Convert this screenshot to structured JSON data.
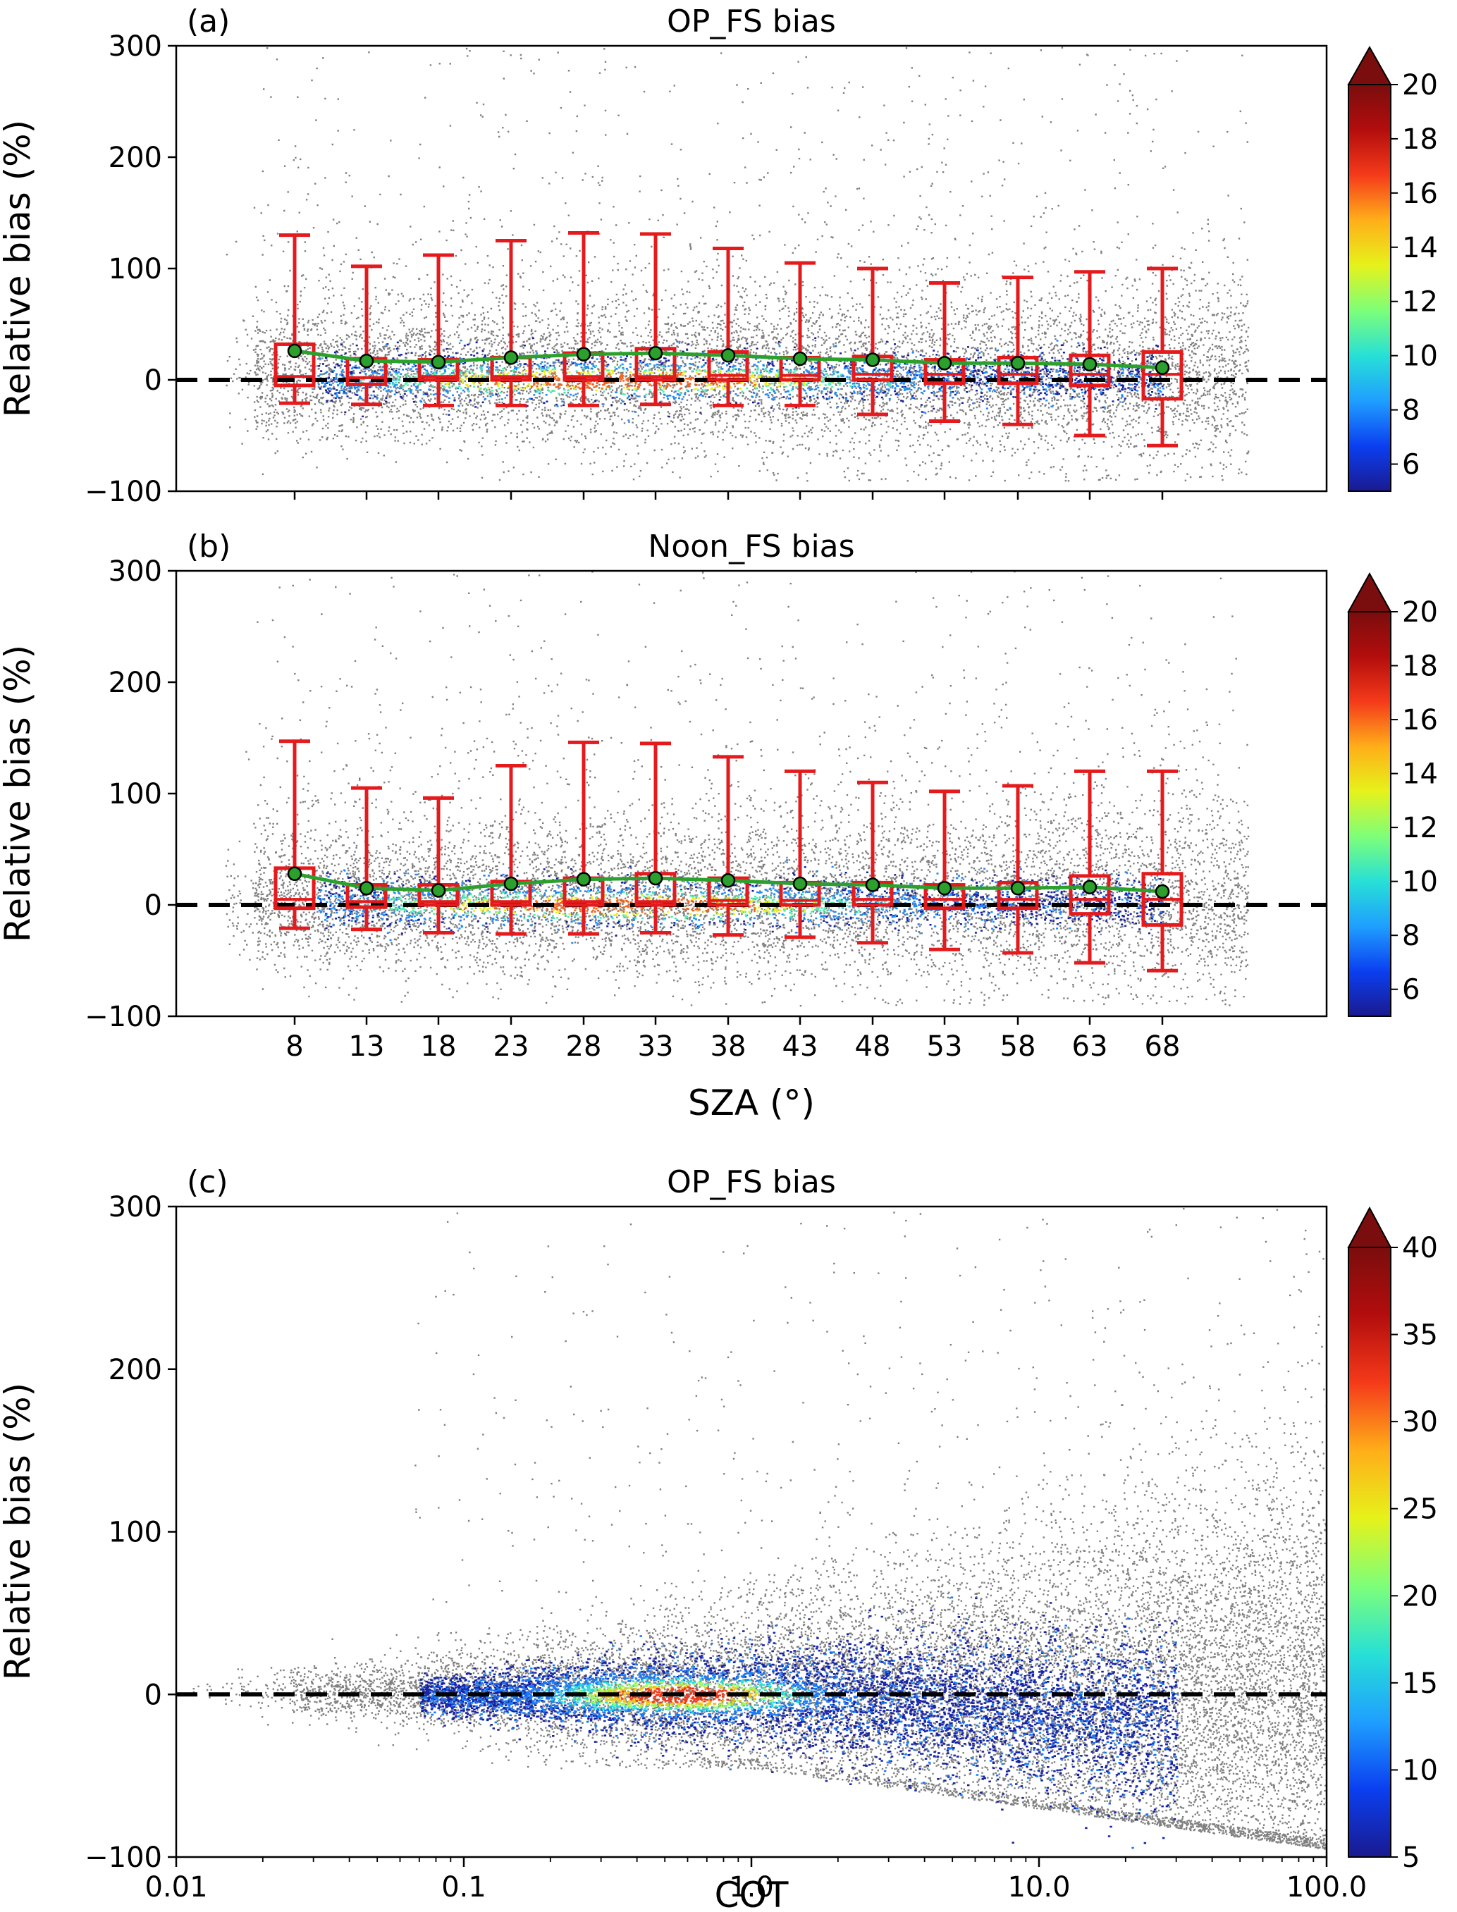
{
  "colors": {
    "scatter": "#808080",
    "box": "#e41a1c",
    "mean_line": "#2ca02c",
    "mean_marker": "#2ca02c",
    "zero_line": "#000000",
    "colormap": [
      "#1a1a8f",
      "#0b3ff0",
      "#1f9fff",
      "#27e0d6",
      "#7dff7a",
      "#e6f21a",
      "#ffae19",
      "#f53a1a",
      "#b30d0d",
      "#7a0d0d"
    ]
  },
  "chart_data": [
    {
      "type": "scatter",
      "panel": "(a)",
      "title": "OP_FS bias",
      "xlabel": "",
      "ylabel": "Relative bias (%)",
      "ylim": [
        -100,
        300
      ],
      "yticks": [
        "300",
        "200",
        "100",
        "0",
        "−100"
      ],
      "x_categories": [
        "8",
        "13",
        "18",
        "23",
        "28",
        "33",
        "38",
        "43",
        "48",
        "53",
        "58",
        "63",
        "68"
      ],
      "boxplot": {
        "whisker_low": [
          -21,
          -22,
          -23,
          -23,
          -23,
          -22,
          -23,
          -23,
          -31,
          -37,
          -40,
          -50,
          -59
        ],
        "q1": [
          -5,
          -4,
          0,
          0,
          0,
          0,
          0,
          0,
          0,
          -3,
          -3,
          -5,
          -17
        ],
        "median": [
          3,
          2,
          3,
          3,
          3,
          3,
          4,
          4,
          5,
          5,
          5,
          5,
          5
        ],
        "q3": [
          32,
          19,
          18,
          20,
          24,
          28,
          25,
          20,
          21,
          18,
          20,
          22,
          25
        ],
        "whisker_high": [
          130,
          102,
          112,
          125,
          132,
          131,
          118,
          105,
          100,
          87,
          92,
          97,
          100
        ]
      },
      "mean": [
        26,
        17,
        16,
        20,
        23,
        24,
        22,
        19,
        18,
        15,
        15,
        14,
        11
      ],
      "zero_line": 0,
      "colorbar": {
        "min": 5,
        "max": 20,
        "extend": "max",
        "ticks": [
          "20",
          "18",
          "16",
          "14",
          "12",
          "10",
          "8",
          "6"
        ]
      }
    },
    {
      "type": "scatter",
      "panel": "(b)",
      "title": "Noon_FS bias",
      "xlabel": "SZA (°)",
      "ylabel": "Relative bias (%)",
      "ylim": [
        -100,
        300
      ],
      "yticks": [
        "300",
        "200",
        "100",
        "0",
        "−100"
      ],
      "x_categories": [
        "8",
        "13",
        "18",
        "23",
        "28",
        "33",
        "38",
        "43",
        "48",
        "53",
        "58",
        "63",
        "68"
      ],
      "boxplot": {
        "whisker_low": [
          -21,
          -22,
          -25,
          -26,
          -26,
          -25,
          -27,
          -29,
          -34,
          -40,
          -43,
          -52,
          -59
        ],
        "q1": [
          -3,
          -2,
          0,
          0,
          0,
          0,
          0,
          0,
          0,
          -3,
          -3,
          -8,
          -18
        ],
        "median": [
          5,
          3,
          3,
          3,
          3,
          3,
          4,
          4,
          5,
          5,
          5,
          5,
          5
        ],
        "q3": [
          33,
          18,
          18,
          21,
          24,
          28,
          24,
          20,
          20,
          18,
          20,
          26,
          28
        ],
        "whisker_high": [
          147,
          105,
          96,
          125,
          146,
          145,
          133,
          120,
          110,
          102,
          107,
          120,
          120
        ]
      },
      "mean": [
        28,
        15,
        13,
        19,
        23,
        24,
        22,
        19,
        18,
        15,
        15,
        16,
        12
      ],
      "zero_line": 0,
      "colorbar": {
        "min": 5,
        "max": 20,
        "extend": "max",
        "ticks": [
          "20",
          "18",
          "16",
          "14",
          "12",
          "10",
          "8",
          "6"
        ]
      }
    },
    {
      "type": "scatter",
      "panel": "(c)",
      "title": "OP_FS bias",
      "xlabel": "COT",
      "ylabel": "Relative bias (%)",
      "xscale": "log",
      "xlim": [
        0.01,
        100
      ],
      "xticks": [
        "0.01",
        "0.1",
        "1.0",
        "10.0",
        "100.0"
      ],
      "ylim": [
        -100,
        300
      ],
      "yticks": [
        "300",
        "200",
        "100",
        "0",
        "−100"
      ],
      "zero_line": 0,
      "colorbar": {
        "min": 5,
        "max": 40,
        "extend": "max",
        "ticks": [
          "40",
          "35",
          "30",
          "25",
          "20",
          "15",
          "10",
          "5"
        ]
      }
    }
  ]
}
